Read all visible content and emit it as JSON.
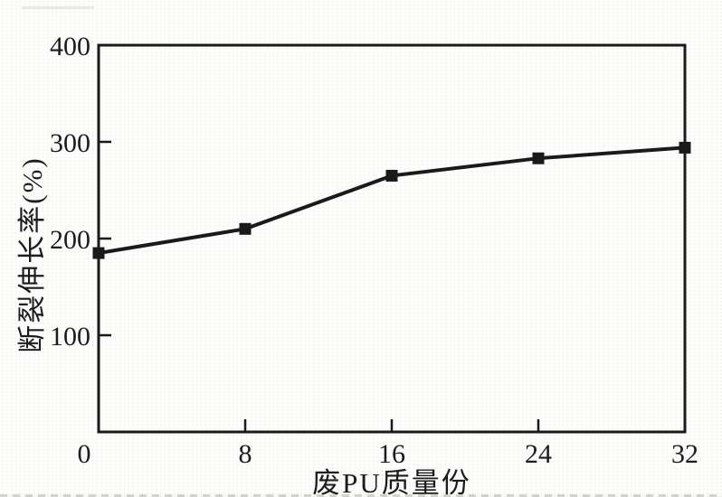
{
  "figure": {
    "background_color": "#fdfdfc",
    "ink_color": "#1a1a1a",
    "text_color": "#1c1c1c"
  },
  "chart_data": {
    "type": "line",
    "x": [
      0,
      8,
      16,
      24,
      32
    ],
    "values": [
      185,
      210,
      265,
      283,
      294
    ],
    "xlabel": "废PU质量份",
    "ylabel": "断裂伸长率(%)",
    "xlim": [
      0,
      32
    ],
    "ylim": [
      0,
      400
    ],
    "xticks": [
      0,
      8,
      16,
      24,
      32
    ],
    "yticks": [
      100,
      200,
      300,
      400
    ],
    "grid": false,
    "legend": false,
    "frame": "box",
    "tick_direction": "in",
    "marker": "square",
    "marker_size": 13,
    "line_width": 4,
    "line_color": "#1a1a1a"
  }
}
